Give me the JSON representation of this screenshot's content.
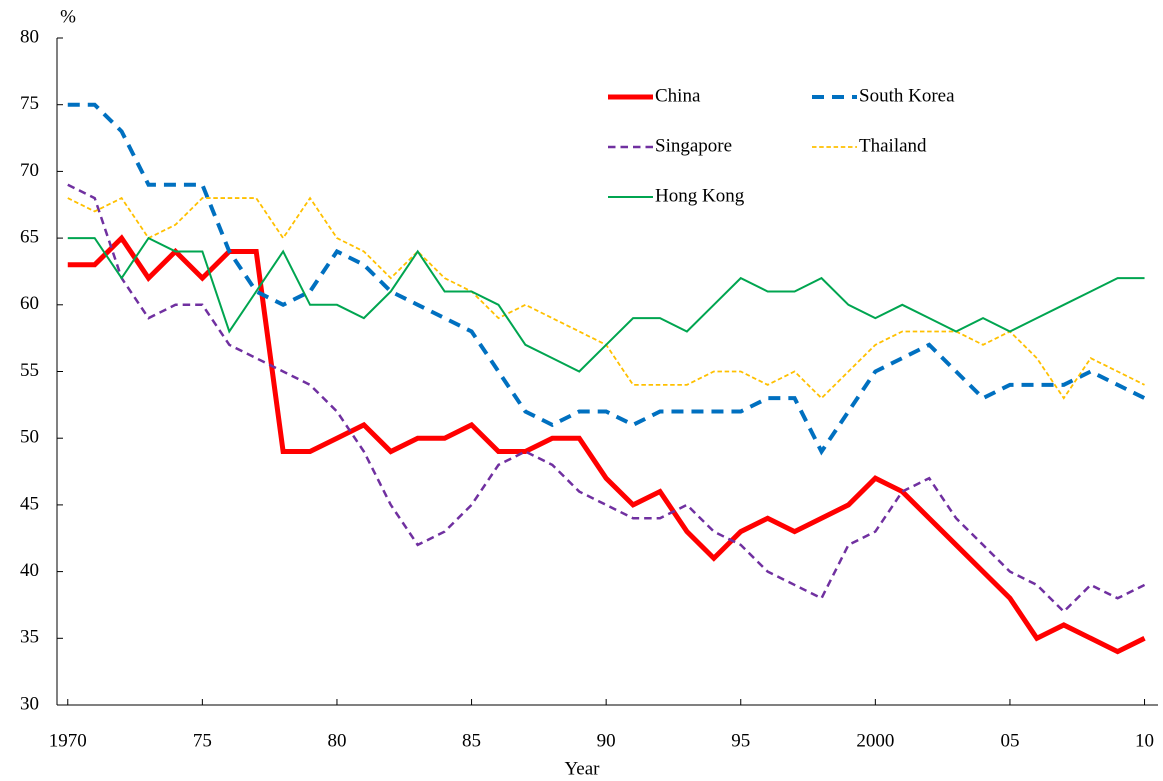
{
  "chart_data": {
    "type": "line",
    "y_label": "%",
    "x_label": "Year",
    "x": [
      1970,
      1971,
      1972,
      1973,
      1974,
      1975,
      1976,
      1977,
      1978,
      1979,
      1980,
      1981,
      1982,
      1983,
      1984,
      1985,
      1986,
      1987,
      1988,
      1989,
      1990,
      1991,
      1992,
      1993,
      1994,
      1995,
      1996,
      1997,
      1998,
      1999,
      2000,
      2001,
      2002,
      2003,
      2004,
      2005,
      2006,
      2007,
      2008,
      2009,
      2010
    ],
    "series": [
      {
        "name": "China",
        "color": "#ff0000",
        "linewidth": 5,
        "dash": "solid",
        "values": [
          63,
          63,
          65,
          62,
          64,
          62,
          64,
          64,
          49,
          49,
          50,
          51,
          49,
          50,
          50,
          51,
          49,
          49,
          50,
          50,
          47,
          45,
          46,
          43,
          41,
          43,
          44,
          43,
          44,
          45,
          47,
          46,
          44,
          42,
          40,
          38,
          35,
          36,
          35,
          34,
          35
        ]
      },
      {
        "name": "South Korea",
        "color": "#0070c0",
        "linewidth": 4,
        "dash": "dashed",
        "values": [
          75,
          75,
          73,
          69,
          69,
          69,
          64,
          61,
          60,
          61,
          64,
          63,
          61,
          60,
          59,
          58,
          55,
          52,
          51,
          52,
          52,
          51,
          52,
          52,
          52,
          52,
          53,
          53,
          49,
          52,
          55,
          56,
          57,
          55,
          53,
          54,
          54,
          54,
          55,
          54,
          53
        ]
      },
      {
        "name": "Singapore",
        "color": "#7030a0",
        "linewidth": 2.5,
        "dash": "dashed",
        "values": [
          69,
          68,
          62,
          59,
          60,
          60,
          57,
          56,
          55,
          54,
          52,
          49,
          45,
          42,
          43,
          45,
          48,
          49,
          48,
          46,
          45,
          44,
          44,
          45,
          43,
          42,
          40,
          39,
          38,
          42,
          43,
          46,
          47,
          44,
          42,
          40,
          39,
          37,
          39,
          38,
          39
        ]
      },
      {
        "name": "Thailand",
        "color": "#ffc000",
        "linewidth": 1.8,
        "dash": "dotted",
        "values": [
          68,
          67,
          68,
          65,
          66,
          68,
          68,
          68,
          65,
          68,
          65,
          64,
          62,
          64,
          62,
          61,
          59,
          60,
          59,
          58,
          57,
          54,
          54,
          54,
          55,
          55,
          54,
          55,
          53,
          55,
          57,
          58,
          58,
          58,
          57,
          58,
          56,
          53,
          56,
          55,
          54
        ]
      },
      {
        "name": "Hong Kong",
        "color": "#00a550",
        "linewidth": 2,
        "dash": "solid",
        "values": [
          65,
          65,
          62,
          65,
          64,
          64,
          58,
          61,
          64,
          60,
          60,
          59,
          61,
          64,
          61,
          61,
          60,
          57,
          56,
          55,
          57,
          59,
          59,
          58,
          60,
          62,
          61,
          61,
          62,
          60,
          59,
          60,
          59,
          58,
          59,
          58,
          59,
          60,
          61,
          62,
          62
        ]
      }
    ],
    "xlim": [
      1969.6,
      2010.5
    ],
    "xticks": [
      1970,
      {
        "value": 1975,
        "label": "75"
      },
      {
        "value": 1980,
        "label": "80"
      },
      {
        "value": 1985,
        "label": "85"
      },
      {
        "value": 1990,
        "label": "90"
      },
      {
        "value": 1995,
        "label": "95"
      },
      2000,
      {
        "value": 2005,
        "label": "05"
      },
      {
        "value": 2010,
        "label": "10"
      }
    ],
    "ylim": [
      30,
      80
    ],
    "yticks": [
      30,
      35,
      40,
      45,
      50,
      55,
      60,
      65,
      70,
      75,
      80
    ],
    "grid": false,
    "legend": "upper right"
  }
}
